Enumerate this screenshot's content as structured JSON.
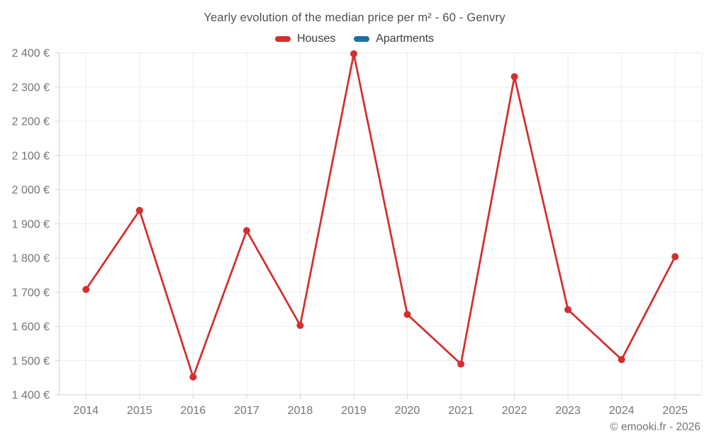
{
  "chart_data": {
    "type": "line",
    "title": "Yearly evolution of the median price per m² - 60 - Genvry",
    "categories": [
      "2014",
      "2015",
      "2016",
      "2017",
      "2018",
      "2019",
      "2020",
      "2021",
      "2022",
      "2023",
      "2024",
      "2025"
    ],
    "series": [
      {
        "name": "Houses",
        "color": "#d32f2f",
        "values": [
          1708,
          1939,
          1452,
          1880,
          1603,
          2397,
          1635,
          1490,
          2330,
          1649,
          1503,
          1804
        ]
      },
      {
        "name": "Apartments",
        "color": "#1e6fa5",
        "values": []
      }
    ],
    "ylim": [
      1400,
      2400
    ],
    "ytick_step": 100,
    "yticklabels": [
      "1 400 €",
      "1 500 €",
      "1 600 €",
      "1 700 €",
      "1 800 €",
      "1 900 €",
      "2 000 €",
      "2 100 €",
      "2 200 €",
      "2 300 €",
      "2 400 €"
    ],
    "grid": true,
    "legend_position": "top",
    "colors": {
      "grid": "#ececec",
      "axis": "#d4d4d4",
      "tick_label": "#757575",
      "title": "#4f4f4f"
    }
  },
  "footer": {
    "text": "© emooki.fr - 2026"
  }
}
